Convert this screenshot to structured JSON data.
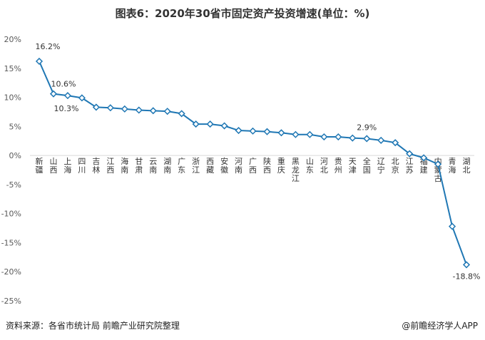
{
  "title": "图表6：2020年30省市固定资产投资增速(单位：%)",
  "footer": {
    "source": "资料来源：各省市统计局 前瞻产业研究院整理",
    "brand": "@前瞻经济学人APP"
  },
  "colors": {
    "line": "#1f77b4",
    "marker_fill": "#ffffff",
    "axis_text": "#595959"
  },
  "chart_data": {
    "type": "line",
    "title": "图表6：2020年30省市固定资产投资增速(单位：%)",
    "categories": [
      "新疆",
      "山西",
      "上海",
      "四川",
      "吉林",
      "江西",
      "海南",
      "甘肃",
      "云南",
      "湖南",
      "广东",
      "浙江",
      "西藏",
      "安徽",
      "河南",
      "广西",
      "陕西",
      "重庆",
      "黑龙江",
      "山东",
      "河北",
      "贵州",
      "天津",
      "全国",
      "辽宁",
      "北京",
      "江苏",
      "福建",
      "内蒙古",
      "青海",
      "湖北"
    ],
    "values": [
      16.2,
      10.6,
      10.3,
      9.9,
      8.3,
      8.2,
      8.0,
      7.8,
      7.7,
      7.6,
      7.2,
      5.4,
      5.4,
      5.1,
      4.3,
      4.2,
      4.1,
      3.9,
      3.6,
      3.6,
      3.2,
      3.2,
      3.0,
      2.9,
      2.6,
      2.2,
      0.3,
      -0.4,
      -1.5,
      -12.2,
      -18.8
    ],
    "data_labels": [
      {
        "category": "新疆",
        "text": "16.2%"
      },
      {
        "category": "山西",
        "text": "10.6%"
      },
      {
        "category": "上海",
        "text": "10.3%"
      },
      {
        "category": "全国",
        "text": "2.9%"
      },
      {
        "category": "湖北",
        "text": "-18.8%"
      }
    ],
    "ylim": [
      -25,
      20
    ],
    "yticks": [
      "20%",
      "15%",
      "10%",
      "5%",
      "0%",
      "-5%",
      "-10%",
      "-15%",
      "-20%",
      "-25%"
    ],
    "grid": false,
    "legend": "none"
  }
}
